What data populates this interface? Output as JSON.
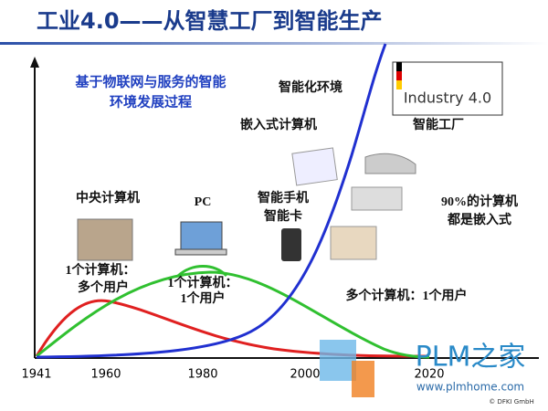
{
  "header": {
    "title": "工业4.0——从智慧工厂到智能生产"
  },
  "subtitle": [
    "基于物联网与服务的智能",
    "环境发展过程"
  ],
  "axis": {
    "years": [
      1941,
      1960,
      1980,
      2000,
      2020
    ]
  },
  "labels": {
    "central": "中央计算机",
    "central_note": [
      "1个计算机：",
      "多个用户"
    ],
    "pc": "PC",
    "pc_note": [
      "1个计算机：",
      "1个用户"
    ],
    "smart": [
      "智能手机",
      "智能卡"
    ],
    "embedded": "嵌入式计算机",
    "environment": "智能化环境",
    "factory": "智能工厂",
    "ninety": [
      "90%的计算机",
      "都是嵌入式"
    ],
    "multi": "多个计算机：1个用户"
  },
  "logo": "Industry 4.0",
  "watermark": {
    "brand": "PLM之家",
    "url": "www.plmhome.com",
    "copyright": "© DFKI GmbH"
  }
}
